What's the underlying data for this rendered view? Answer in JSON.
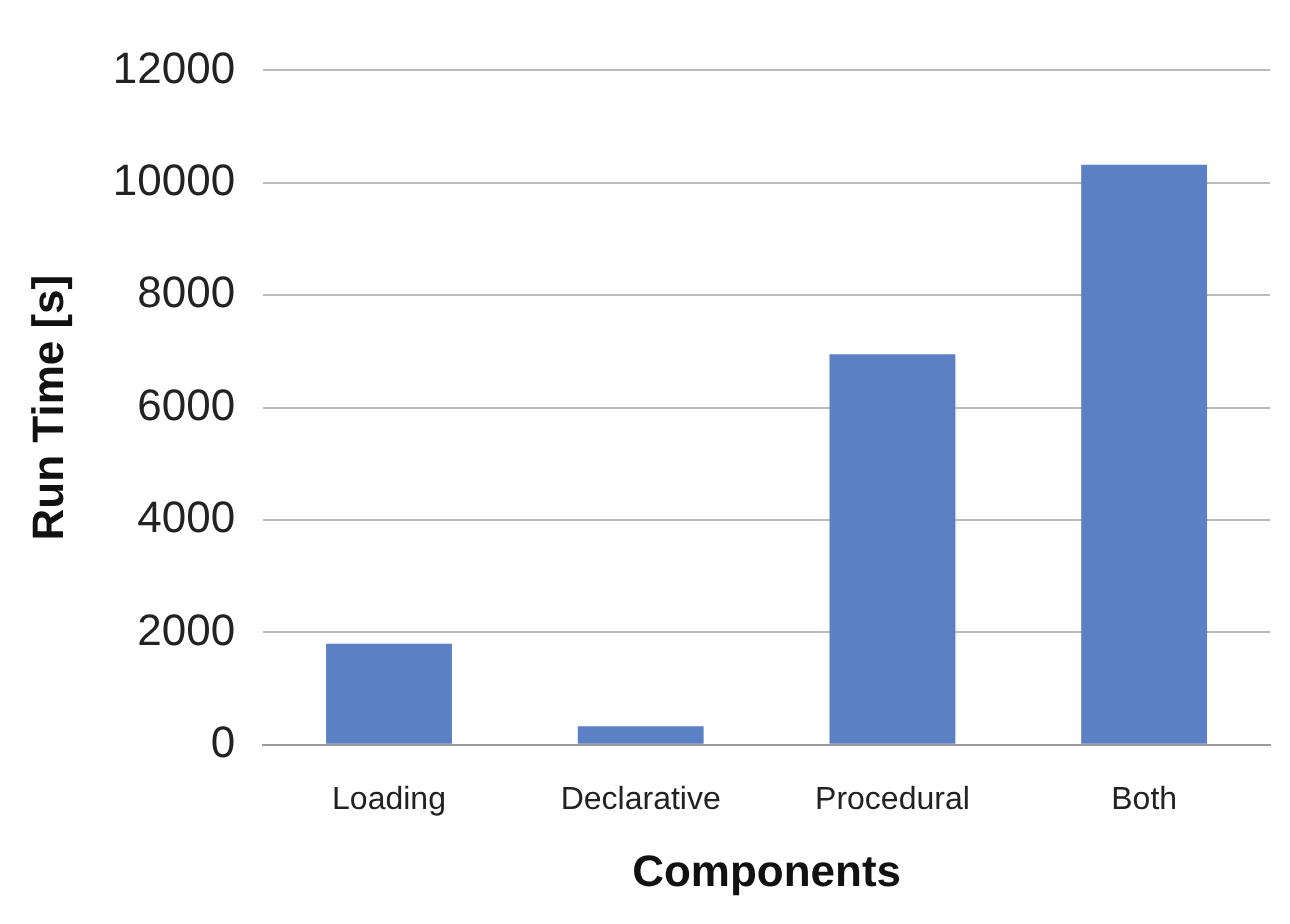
{
  "chart_data": {
    "type": "bar",
    "xlabel": "Components",
    "ylabel": "Run Time [s]",
    "categories": [
      "Loading",
      "Declarative",
      "Procedural",
      "Both"
    ],
    "values": [
      1800,
      330,
      6950,
      10320
    ],
    "color": "#5b80c4",
    "ylim": [
      0,
      12000
    ],
    "yticks": [
      0,
      2000,
      4000,
      6000,
      8000,
      10000,
      12000
    ],
    "grid": "y",
    "legend": false
  }
}
